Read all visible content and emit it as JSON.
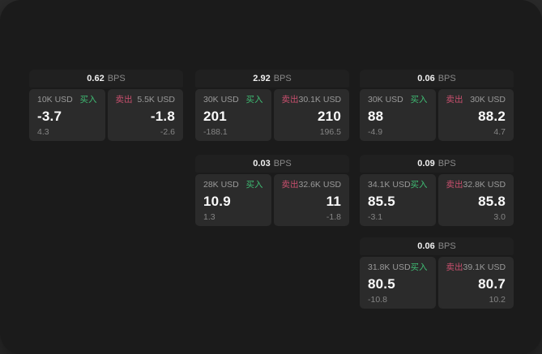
{
  "labels": {
    "buy": "买入",
    "sell": "卖出",
    "bps_unit": "BPS"
  },
  "colors": {
    "backdrop": "#2c2c2c",
    "surface": "#1b1b1b",
    "card_header": "#202020",
    "panel": "#2b2b2b",
    "buy_green": "#3fbd74",
    "sell_red": "#c9506e"
  },
  "cards": [
    {
      "bps": "0.62",
      "col": 1,
      "row": 1,
      "buy": {
        "amount": "10K USD",
        "value": "-3.7",
        "sub": "4.3"
      },
      "sell": {
        "amount": "5.5K USD",
        "value": "-1.8",
        "sub": "-2.6"
      }
    },
    {
      "bps": "2.92",
      "col": 2,
      "row": 1,
      "buy": {
        "amount": "30K USD",
        "value": "201",
        "sub": "-188.1"
      },
      "sell": {
        "amount": "30.1K USD",
        "value": "210",
        "sub": "196.5"
      }
    },
    {
      "bps": "0.06",
      "col": 3,
      "row": 1,
      "buy": {
        "amount": "30K USD",
        "value": "88",
        "sub": "-4.9"
      },
      "sell": {
        "amount": "30K USD",
        "value": "88.2",
        "sub": "4.7"
      }
    },
    {
      "bps": "0.03",
      "col": 2,
      "row": 2,
      "buy": {
        "amount": "28K USD",
        "value": "10.9",
        "sub": "1.3"
      },
      "sell": {
        "amount": "32.6K USD",
        "value": "11",
        "sub": "-1.8"
      }
    },
    {
      "bps": "0.09",
      "col": 3,
      "row": 2,
      "buy": {
        "amount": "34.1K USD",
        "value": "85.5",
        "sub": "-3.1"
      },
      "sell": {
        "amount": "32.8K USD",
        "value": "85.8",
        "sub": "3.0"
      }
    },
    {
      "bps": "0.06",
      "col": 3,
      "row": 3,
      "buy": {
        "amount": "31.8K USD",
        "value": "80.5",
        "sub": "-10.8"
      },
      "sell": {
        "amount": "39.1K USD",
        "value": "80.7",
        "sub": "10.2"
      }
    }
  ]
}
